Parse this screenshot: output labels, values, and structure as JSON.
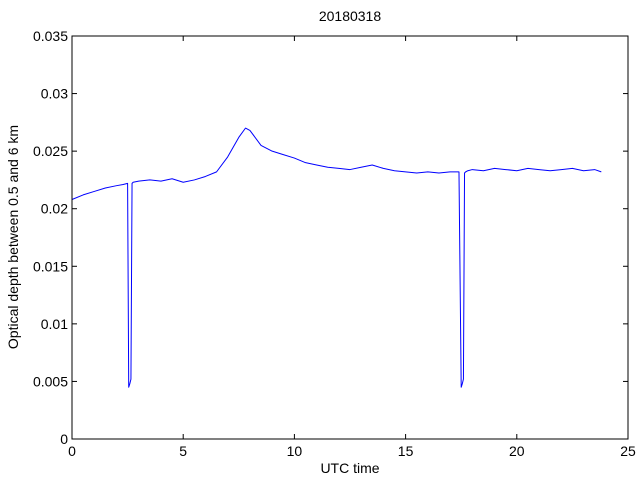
{
  "chart_data": {
    "type": "line",
    "title": "20180318",
    "xlabel": "UTC time",
    "ylabel": "Optical depth between 0.5 and 6 km",
    "xlim": [
      0,
      25
    ],
    "ylim": [
      0,
      0.035
    ],
    "x_ticks": [
      0,
      5,
      10,
      15,
      20,
      25
    ],
    "y_ticks": [
      0,
      0.005,
      0.01,
      0.015,
      0.02,
      0.025,
      0.03,
      0.035
    ],
    "x_tick_labels": [
      "0",
      "5",
      "10",
      "15",
      "20",
      "25"
    ],
    "y_tick_labels": [
      "0",
      "0.005",
      "0.01",
      "0.015",
      "0.02",
      "0.025",
      "0.03",
      "0.035"
    ],
    "grid": false,
    "line_color": "#0000ff",
    "series": [
      {
        "x": [
          0.0,
          0.5,
          1.0,
          1.5,
          2.0,
          2.3,
          2.5,
          2.55,
          2.6,
          2.65,
          2.7,
          2.75,
          3.0,
          3.5,
          4.0,
          4.5,
          5.0,
          5.5,
          6.0,
          6.5,
          7.0,
          7.5,
          7.8,
          8.0,
          8.5,
          9.0,
          9.5,
          10.0,
          10.5,
          11.0,
          11.5,
          12.0,
          12.5,
          13.0,
          13.5,
          14.0,
          14.5,
          15.0,
          15.5,
          16.0,
          16.5,
          17.0,
          17.4,
          17.5,
          17.55,
          17.6,
          17.65,
          17.7,
          17.8,
          18.0,
          18.5,
          19.0,
          19.5,
          20.0,
          20.5,
          21.0,
          21.5,
          22.0,
          22.5,
          23.0,
          23.5,
          23.8
        ],
        "y": [
          0.0208,
          0.0212,
          0.0215,
          0.0218,
          0.022,
          0.0221,
          0.0222,
          0.0045,
          0.0048,
          0.0052,
          0.0222,
          0.0223,
          0.0224,
          0.0225,
          0.0224,
          0.0226,
          0.0223,
          0.0225,
          0.0228,
          0.0232,
          0.0245,
          0.0262,
          0.027,
          0.0268,
          0.0255,
          0.025,
          0.0247,
          0.0244,
          0.024,
          0.0238,
          0.0236,
          0.0235,
          0.0234,
          0.0236,
          0.0238,
          0.0235,
          0.0233,
          0.0232,
          0.0231,
          0.0232,
          0.0231,
          0.0232,
          0.0232,
          0.0045,
          0.0048,
          0.0052,
          0.0231,
          0.0232,
          0.0233,
          0.0234,
          0.0233,
          0.0235,
          0.0234,
          0.0233,
          0.0235,
          0.0234,
          0.0233,
          0.0234,
          0.0235,
          0.0233,
          0.0234,
          0.0232
        ]
      }
    ]
  }
}
